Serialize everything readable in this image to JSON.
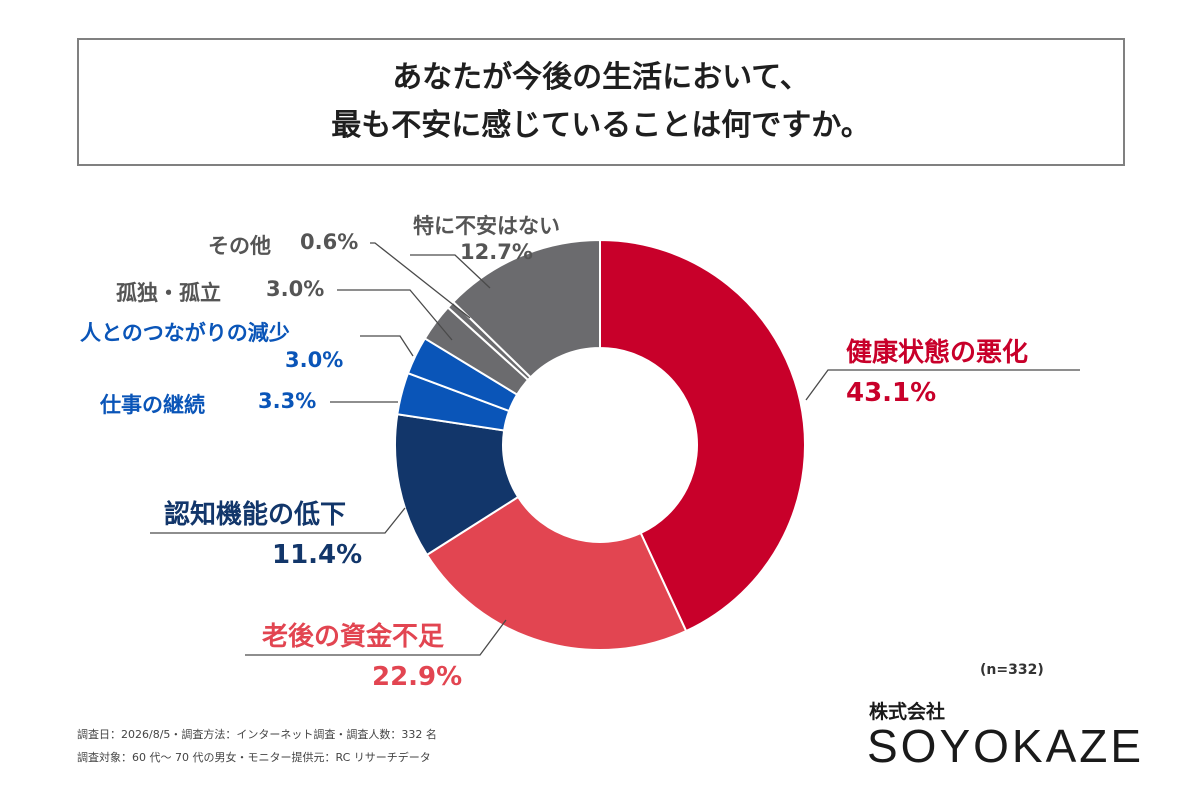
{
  "title": {
    "line1": "あなたが今後の生活において、",
    "line2": "最も不安に感じていることは何ですか。"
  },
  "chart_data": {
    "type": "pie",
    "donut": true,
    "n_label": "(n=332)",
    "slices": [
      {
        "label": "健康状態の悪化",
        "value_text": "43.1%",
        "value": 43.1,
        "color": "#c8002a"
      },
      {
        "label": "老後の資金不足",
        "value_text": "22.9%",
        "value": 22.9,
        "color": "#e24551"
      },
      {
        "label": "認知機能の低下",
        "value_text": "11.4%",
        "value": 11.4,
        "color": "#12366a"
      },
      {
        "label": "仕事の継続",
        "value_text": "3.3%",
        "value": 3.3,
        "color": "#0a55b8"
      },
      {
        "label": "人とのつながりの減少",
        "value_text": "3.0%",
        "value": 3.0,
        "color": "#0a55b8"
      },
      {
        "label": "孤独・孤立",
        "value_text": "3.0%",
        "value": 3.0,
        "color": "#6b6b6e"
      },
      {
        "label": "その他",
        "value_text": "0.6%",
        "value": 0.6,
        "color": "#6b6b6e"
      },
      {
        "label": "特に不安はない",
        "value_text": "12.7%",
        "value": 12.7,
        "color": "#6b6b6e"
      }
    ]
  },
  "footer": {
    "line1": "調査日：2026/8/5・調査方法：インターネット調査・調査人数：332 名",
    "line2": "調査対象：60 代〜 70 代の男女・モニター提供元：RC リサーチデータ"
  },
  "company": {
    "japanese": "株式会社",
    "name": "SOYOKAZE"
  }
}
